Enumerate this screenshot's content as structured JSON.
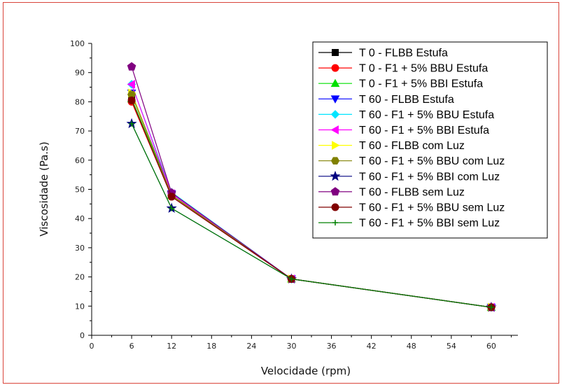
{
  "chart_data": {
    "type": "line",
    "xlabel": "Velocidade (rpm)",
    "ylabel": "Viscosidade (Pa.s)",
    "xlim": [
      0,
      64
    ],
    "ylim": [
      0,
      100
    ],
    "x_ticks": [
      0,
      6,
      12,
      18,
      24,
      30,
      36,
      42,
      48,
      54,
      60
    ],
    "y_ticks": [
      0,
      10,
      20,
      30,
      40,
      50,
      60,
      70,
      80,
      90,
      100
    ],
    "x_tick_labels": [
      "0",
      "6",
      "12",
      "18",
      "24",
      "30",
      "36",
      "42",
      "48",
      "54",
      "60"
    ],
    "y_tick_labels": [
      "0",
      "10",
      "20",
      "30",
      "40",
      "50",
      "60",
      "70",
      "80",
      "90",
      "100"
    ],
    "x": [
      6,
      12,
      30,
      60
    ],
    "legend_position": "top-right",
    "grid": false,
    "series": [
      {
        "name": "T 0 - FLBB Estufa",
        "marker": "square",
        "color": "#000000",
        "values": [
          81,
          48,
          19.3,
          9.6
        ]
      },
      {
        "name": "T 0 - F1 + 5% BBU Estufa",
        "marker": "circle",
        "color": "#ff0000",
        "values": [
          80,
          47.5,
          19.3,
          9.6
        ]
      },
      {
        "name": "T 0 - F1 + 5% BBI Estufa",
        "marker": "triangle-up",
        "color": "#00e000",
        "values": [
          81,
          48,
          19.3,
          9.6
        ]
      },
      {
        "name": "T 60 - FLBB Estufa",
        "marker": "triangle-down",
        "color": "#0000ff",
        "values": [
          83,
          48.5,
          19.3,
          9.6
        ]
      },
      {
        "name": "T 60 - F1 + 5% BBU Estufa",
        "marker": "diamond",
        "color": "#00e5ff",
        "values": [
          86,
          49,
          19.3,
          9.6
        ]
      },
      {
        "name": "T 60 - F1 + 5% BBI Estufa",
        "marker": "triangle-left",
        "color": "#ff00ff",
        "values": [
          86,
          48.5,
          19.3,
          9.6
        ]
      },
      {
        "name": "T 60 - FLBB com Luz",
        "marker": "triangle-right",
        "color": "#ffff00",
        "values": [
          83,
          48,
          19.3,
          9.6
        ]
      },
      {
        "name": "T 60 - F1 + 5% BBU com Luz",
        "marker": "hexagon",
        "color": "#808000",
        "values": [
          82.5,
          48,
          19.3,
          9.6
        ]
      },
      {
        "name": "T 60 - F1 + 5% BBI com Luz",
        "marker": "star",
        "color": "#000080",
        "values": [
          72.5,
          43.5,
          19.3,
          9.6
        ]
      },
      {
        "name": "T 60 - FLBB sem Luz",
        "marker": "pentagon",
        "color": "#800080",
        "values": [
          92,
          48.8,
          19.3,
          9.6
        ]
      },
      {
        "name": "T 60 - F1 + 5% BBU sem Luz",
        "marker": "circle",
        "color": "#800000",
        "values": [
          80.5,
          47.5,
          19.3,
          9.6
        ]
      },
      {
        "name": "T 60 - F1 + 5% BBI sem Luz",
        "marker": "plus",
        "color": "#008000",
        "values": [
          72.5,
          43.5,
          19.3,
          9.6
        ]
      }
    ]
  }
}
